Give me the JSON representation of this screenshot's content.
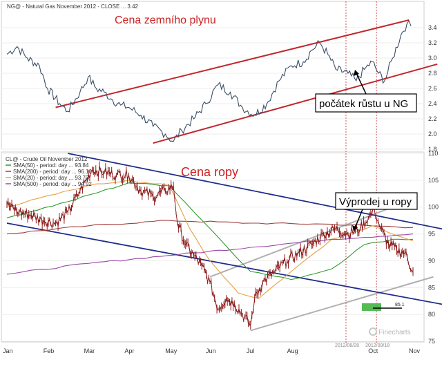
{
  "chart_data": [
    {
      "type": "line",
      "legend_title": "NG@ - Natural Gas November 2012 - CLOSE ... 3.42",
      "title": "Cena zemního plynu",
      "ylim": [
        1.8,
        3.6
      ],
      "yticks": [
        "1.8",
        "2.0",
        "2.2",
        "2.4",
        "2.6",
        "2.8",
        "3.0",
        "3.2",
        "3.4"
      ],
      "x_axis": "months Jan–Nov 2012",
      "series": [
        {
          "name": "NG@ close",
          "color": "#3a4d66",
          "points": [
            [
              0.0,
              3.05
            ],
            [
              0.25,
              3.15
            ],
            [
              0.5,
              3.0
            ],
            [
              0.8,
              2.9
            ],
            [
              1.0,
              2.6
            ],
            [
              1.3,
              2.4
            ],
            [
              1.5,
              2.3
            ],
            [
              1.8,
              2.55
            ],
            [
              2.0,
              2.75
            ],
            [
              2.2,
              2.6
            ],
            [
              2.4,
              2.55
            ],
            [
              2.6,
              2.45
            ],
            [
              2.8,
              2.38
            ],
            [
              3.0,
              2.35
            ],
            [
              3.3,
              2.25
            ],
            [
              3.6,
              2.1
            ],
            [
              3.9,
              2.0
            ],
            [
              4.1,
              1.9
            ],
            [
              4.3,
              2.05
            ],
            [
              4.6,
              2.2
            ],
            [
              4.9,
              2.4
            ],
            [
              5.2,
              2.65
            ],
            [
              5.5,
              2.55
            ],
            [
              5.8,
              2.35
            ],
            [
              6.1,
              2.25
            ],
            [
              6.4,
              2.4
            ],
            [
              6.7,
              2.7
            ],
            [
              7.0,
              2.9
            ],
            [
              7.3,
              2.95
            ],
            [
              7.5,
              3.1
            ],
            [
              7.7,
              3.2
            ],
            [
              7.9,
              3.05
            ],
            [
              8.1,
              2.85
            ],
            [
              8.4,
              2.8
            ],
            [
              8.6,
              2.7
            ],
            [
              8.8,
              2.85
            ],
            [
              9.0,
              2.95
            ],
            [
              9.15,
              2.8
            ],
            [
              9.3,
              2.7
            ],
            [
              9.5,
              3.0
            ],
            [
              9.7,
              3.3
            ],
            [
              9.85,
              3.45
            ],
            [
              9.95,
              3.42
            ]
          ]
        }
      ],
      "trend_lines": {
        "color": "#c0282d",
        "upper": [
          [
            1.2,
            2.35
          ],
          [
            9.9,
            3.5
          ]
        ],
        "lower": [
          [
            3.6,
            1.88
          ],
          [
            10.6,
            2.92
          ]
        ]
      },
      "vlines": [
        {
          "x": 8.35,
          "label": "2012/08/28"
        },
        {
          "x": 9.1,
          "label": "2012/09/18"
        }
      ],
      "annotation": "počátek růstu u NG"
    },
    {
      "type": "line",
      "legend_title": "CL@ - Crude Oil November 2012",
      "title": "Cena ropy",
      "ylim": [
        75,
        110
      ],
      "yticks": [
        "75",
        "80",
        "85",
        "90",
        "95",
        "100",
        "105",
        "110"
      ],
      "x_axis": "months Jan–Nov 2012",
      "series": [
        {
          "name": "CL@",
          "color": "#8b1a1a",
          "points": [
            [
              0.0,
              100.5
            ],
            [
              0.3,
              99
            ],
            [
              0.6,
              98.5
            ],
            [
              0.9,
              97.5
            ],
            [
              1.2,
              97
            ],
            [
              1.5,
              99
            ],
            [
              1.8,
              103
            ],
            [
              2.1,
              107
            ],
            [
              2.4,
              106.5
            ],
            [
              2.7,
              106
            ],
            [
              3.0,
              106
            ],
            [
              3.3,
              103
            ],
            [
              3.6,
              102
            ],
            [
              3.9,
              103
            ],
            [
              4.1,
              104
            ],
            [
              4.2,
              97
            ],
            [
              4.4,
              93
            ],
            [
              4.6,
              91
            ],
            [
              4.8,
              89
            ],
            [
              5.0,
              86
            ],
            [
              5.2,
              81
            ],
            [
              5.4,
              83
            ],
            [
              5.6,
              82
            ],
            [
              5.8,
              80
            ],
            [
              6.0,
              78
            ],
            [
              6.1,
              83
            ],
            [
              6.3,
              86
            ],
            [
              6.6,
              88
            ],
            [
              6.9,
              90
            ],
            [
              7.2,
              91.5
            ],
            [
              7.5,
              93
            ],
            [
              7.8,
              95
            ],
            [
              8.1,
              96
            ],
            [
              8.4,
              95
            ],
            [
              8.7,
              96
            ],
            [
              8.9,
              98
            ],
            [
              9.05,
              99.5
            ],
            [
              9.2,
              96
            ],
            [
              9.4,
              93
            ],
            [
              9.6,
              92
            ],
            [
              9.8,
              91.5
            ],
            [
              10.0,
              88
            ]
          ]
        },
        {
          "name": "SMA(50) - period: day ... 93.84",
          "color": "#2e9b2e",
          "points": [
            [
              0.0,
              98
            ],
            [
              1.5,
              101
            ],
            [
              3.0,
              104.5
            ],
            [
              4.0,
              104
            ],
            [
              5.0,
              96
            ],
            [
              6.0,
              88
            ],
            [
              7.0,
              86.5
            ],
            [
              8.0,
              88.5
            ],
            [
              8.8,
              93
            ],
            [
              9.5,
              94
            ],
            [
              10.0,
              94
            ]
          ]
        },
        {
          "name": "SMA(200) - period: day ... 96.16",
          "color": "#a23c3c",
          "points": [
            [
              0.0,
              95
            ],
            [
              2.0,
              96.5
            ],
            [
              4.0,
              97.5
            ],
            [
              6.0,
              97
            ],
            [
              8.0,
              96.8
            ],
            [
              10.0,
              96.2
            ]
          ]
        },
        {
          "name": "SMA(20) - period: day ... 93.72",
          "color": "#e6a043",
          "points": [
            [
              0.0,
              100
            ],
            [
              2.0,
              104
            ],
            [
              3.0,
              105
            ],
            [
              4.0,
              104
            ],
            [
              4.5,
              96
            ],
            [
              5.0,
              90
            ],
            [
              5.7,
              84
            ],
            [
              6.2,
              83
            ],
            [
              7.0,
              88
            ],
            [
              8.0,
              94
            ],
            [
              9.0,
              96.5
            ],
            [
              10.0,
              93.7
            ]
          ]
        },
        {
          "name": "SMA(500) - period: day ... 94.92",
          "color": "#9a4aa8",
          "points": [
            [
              0.0,
              87.5
            ],
            [
              2.0,
              89.5
            ],
            [
              4.0,
              91
            ],
            [
              6.0,
              92.5
            ],
            [
              8.0,
              94
            ],
            [
              10.0,
              95
            ]
          ]
        }
      ],
      "trend_lines": {
        "blue": {
          "color": "#1f2d8c",
          "upper": [
            [
              1.5,
              110
            ],
            [
              11.0,
              95.5
            ]
          ],
          "lower": [
            [
              0.0,
              97
            ],
            [
              11.0,
              81.5
            ]
          ]
        },
        "gray": {
          "color": "#b0b0b0",
          "upper": [
            [
              5.0,
              87
            ],
            [
              9.5,
              100
            ]
          ],
          "lower": [
            [
              6.0,
              77
            ],
            [
              10.5,
              87
            ]
          ]
        }
      },
      "marker": {
        "label": "85.1",
        "value": 85.1,
        "color": "#55bb55"
      },
      "annotation": "Výprodej u ropy",
      "watermark": "Finecharts"
    }
  ],
  "x_axis_labels": [
    "Jan",
    "Feb",
    "Mar",
    "Apr",
    "May",
    "Jun",
    "Jul",
    "Aug",
    "Oct",
    "Nov"
  ],
  "x_axis_label_positions": [
    0,
    1,
    2,
    3,
    4,
    5,
    6,
    7,
    9,
    10
  ],
  "vline_labels": [
    "2012/08/28",
    "2012/09/18"
  ]
}
